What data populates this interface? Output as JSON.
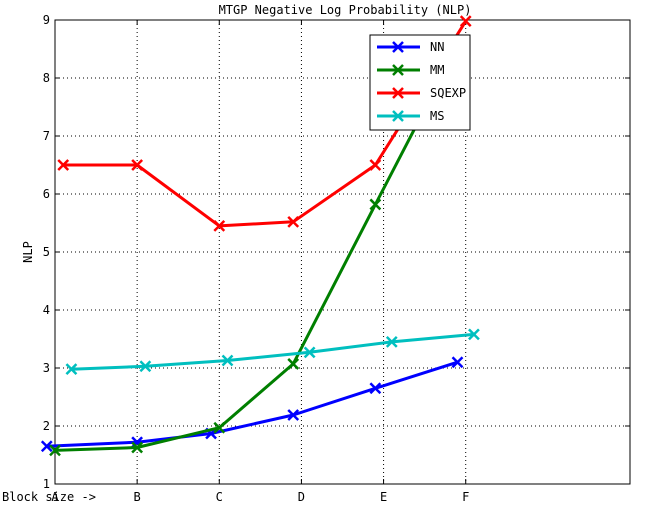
{
  "chart_data": {
    "type": "line",
    "title": "MTGP Negative Log Probability (NLP)",
    "xlabel": "Block size ->",
    "ylabel": "NLP",
    "categories": [
      "A",
      "B",
      "C",
      "D",
      "E",
      "F"
    ],
    "xlim": [
      0,
      7
    ],
    "ylim": [
      1,
      9
    ],
    "yticks": [
      1,
      2,
      3,
      4,
      5,
      6,
      7,
      8,
      9
    ],
    "grid": true,
    "legend": "top-right",
    "series": [
      {
        "name": "NN",
        "color": "#0000ff",
        "x": [
          -0.1,
          1.0,
          1.9,
          2.9,
          3.9,
          4.9
        ],
        "values": [
          1.65,
          1.72,
          1.87,
          2.19,
          2.65,
          3.1
        ]
      },
      {
        "name": "MM",
        "color": "#007f00",
        "x": [
          0.0,
          1.0,
          2.0,
          2.9,
          3.9,
          4.9
        ],
        "values": [
          1.58,
          1.63,
          1.97,
          3.07,
          5.82,
          8.55
        ]
      },
      {
        "name": "SQEXP",
        "color": "#ff0000",
        "x": [
          0.1,
          1.0,
          2.0,
          2.9,
          3.9,
          5.0
        ],
        "values": [
          6.5,
          6.5,
          5.45,
          5.52,
          6.5,
          8.98
        ]
      },
      {
        "name": "MS",
        "color": "#00bfbf",
        "x": [
          0.2,
          1.1,
          2.1,
          3.1,
          4.1,
          5.1
        ],
        "values": [
          2.98,
          3.03,
          3.13,
          3.27,
          3.45,
          3.58
        ]
      }
    ]
  }
}
